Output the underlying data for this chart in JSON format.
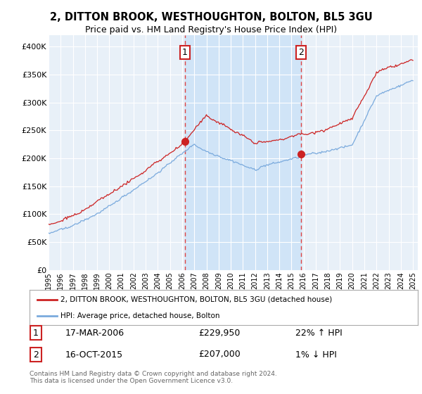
{
  "title": "2, DITTON BROOK, WESTHOUGHTON, BOLTON, BL5 3GU",
  "subtitle": "Price paid vs. HM Land Registry's House Price Index (HPI)",
  "legend_line1": "2, DITTON BROOK, WESTHOUGHTON, BOLTON, BL5 3GU (detached house)",
  "legend_line2": "HPI: Average price, detached house, Bolton",
  "transaction1_date": "17-MAR-2006",
  "transaction1_price": 229950,
  "transaction1_price_str": "£229,950",
  "transaction1_hpi_pct": "22% ↑ HPI",
  "transaction1_label": "1",
  "transaction1_year": 2006.21,
  "transaction2_date": "16-OCT-2015",
  "transaction2_price": 207000,
  "transaction2_price_str": "£207,000",
  "transaction2_hpi_pct": "1% ↓ HPI",
  "transaction2_label": "2",
  "transaction2_year": 2015.79,
  "footer": "Contains HM Land Registry data © Crown copyright and database right 2024.\nThis data is licensed under the Open Government Licence v3.0.",
  "ylim_min": 0,
  "ylim_max": 420000,
  "xlim_start": 1995.0,
  "xlim_end": 2025.4,
  "background_color": "#ffffff",
  "chart_bg_color": "#e8f0f8",
  "shade_color": "#d0e4f7",
  "red_color": "#cc2222",
  "blue_color": "#7aaadd",
  "grid_color": "#ffffff",
  "dashed_color": "#dd4444"
}
